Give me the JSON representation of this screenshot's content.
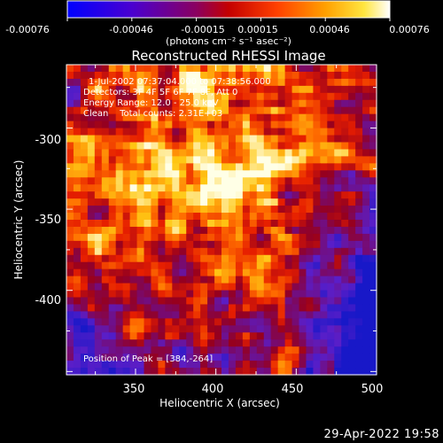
{
  "colorbar": {
    "tick_labels": [
      "-0.00076",
      "-0.00046",
      "-0.00015",
      "0.00015",
      "0.00046",
      "0.00076"
    ],
    "unit_label": "(photons cm⁻² s⁻¹ asec⁻²)",
    "range": [
      -0.00076,
      0.00076
    ]
  },
  "chart_data": {
    "type": "heatmap",
    "title": "Reconstructed RHESSI Image",
    "xlabel": "Heliocentric X (arcsec)",
    "ylabel": "Heliocentric Y (arcsec)",
    "xlim": [
      307,
      500
    ],
    "ylim": [
      -452,
      -261
    ],
    "xticks": [
      350,
      400,
      450,
      500
    ],
    "yticks": [
      -300,
      -350,
      -400
    ],
    "annotations": {
      "time_range": "1-Jul-2002 07:37:04.000 to 07:38:56.000",
      "detectors": "Detectors: 3F 4F 5F 6F 7F 8F, Att 0",
      "energy_range": "Energy Range: 12.0 - 25.0 keV",
      "clean_counts": "Clean    Total counts: 2.31E+03",
      "peak": "Position of Peak = [384,-264]"
    },
    "peak_position": [
      384,
      -264
    ],
    "colormap": [
      "#1c1cff",
      "#7a00c8",
      "#d0102a",
      "#ff5a00",
      "#ffb800",
      "#ffffff"
    ]
  },
  "footer": {
    "date": "29-Apr-2022 19:58"
  }
}
